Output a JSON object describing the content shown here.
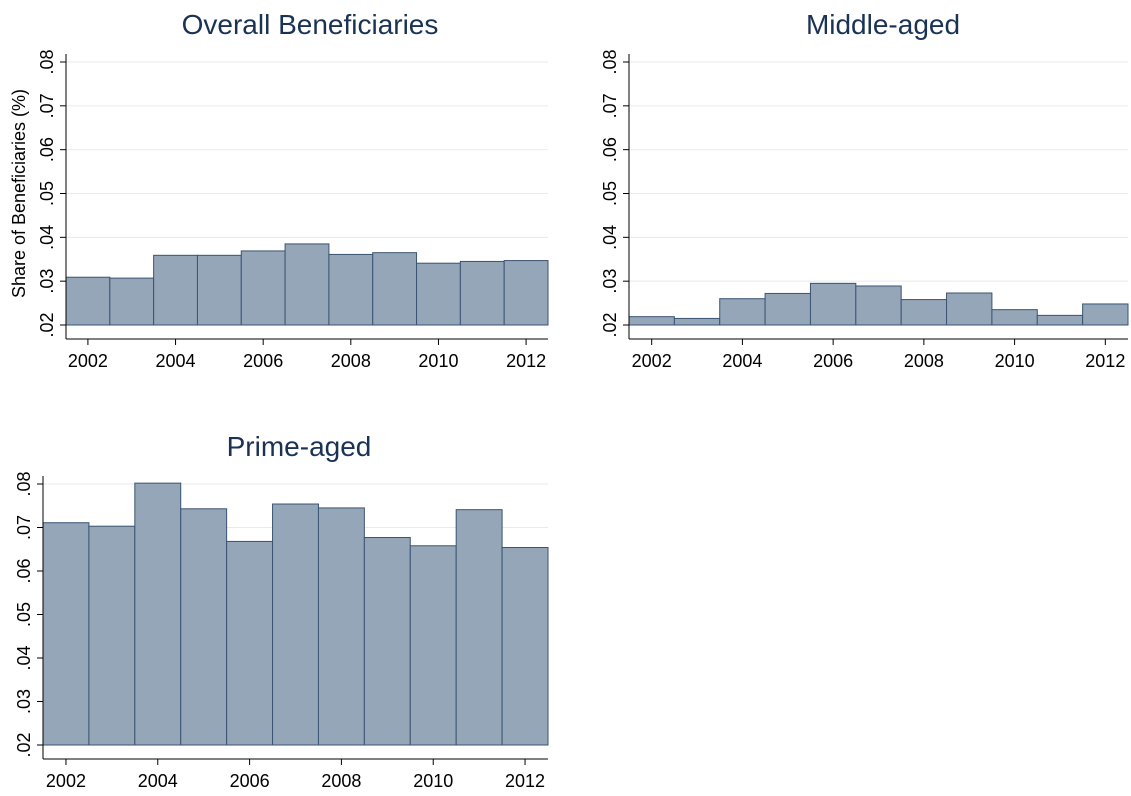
{
  "figure": {
    "background": "#ffffff"
  },
  "style": {
    "bar_fill": "#94a6b8",
    "bar_stroke": "#3a5472",
    "grid_color": "#e6eaee",
    "axis_color": "#000000",
    "title_color": "#1a3254"
  },
  "chart_data": [
    {
      "type": "bar",
      "title": "Overall Beneficiaries",
      "ylabel": "Share of Beneficiaries (%)",
      "xlabel": "",
      "x": [
        2002,
        2003,
        2004,
        2005,
        2006,
        2007,
        2008,
        2009,
        2010,
        2011,
        2012
      ],
      "values": [
        0.0309,
        0.0307,
        0.0359,
        0.0359,
        0.0369,
        0.0385,
        0.0361,
        0.0365,
        0.0341,
        0.0345,
        0.0347
      ],
      "ylim": [
        0.02,
        0.08
      ],
      "yticks": [
        ".02",
        ".03",
        ".04",
        ".05",
        ".06",
        ".07",
        ".08"
      ],
      "xticks": [
        "2002",
        "2004",
        "2006",
        "2008",
        "2010",
        "2012"
      ],
      "grid": true
    },
    {
      "type": "bar",
      "title": "Middle-aged",
      "ylabel": "",
      "xlabel": "",
      "x": [
        2002,
        2003,
        2004,
        2005,
        2006,
        2007,
        2008,
        2009,
        2010,
        2011,
        2012
      ],
      "values": [
        0.0219,
        0.0215,
        0.026,
        0.0272,
        0.0295,
        0.0289,
        0.0258,
        0.0273,
        0.0235,
        0.0222,
        0.0248
      ],
      "ylim": [
        0.02,
        0.08
      ],
      "yticks": [
        ".02",
        ".03",
        ".04",
        ".05",
        ".06",
        ".07",
        ".08"
      ],
      "xticks": [
        "2002",
        "2004",
        "2006",
        "2008",
        "2010",
        "2012"
      ],
      "grid": true
    },
    {
      "type": "bar",
      "title": "Prime-aged",
      "ylabel": "",
      "xlabel": "",
      "x": [
        2002,
        2003,
        2004,
        2005,
        2006,
        2007,
        2008,
        2009,
        2010,
        2011,
        2012
      ],
      "values": [
        0.0711,
        0.0703,
        0.0802,
        0.0743,
        0.0668,
        0.0754,
        0.0745,
        0.0677,
        0.0658,
        0.0741,
        0.0654
      ],
      "ylim": [
        0.02,
        0.08
      ],
      "yticks": [
        ".02",
        ".03",
        ".04",
        ".05",
        ".06",
        ".07",
        ".08"
      ],
      "xticks": [
        "2002",
        "2004",
        "2006",
        "2008",
        "2010",
        "2012"
      ],
      "grid": true
    }
  ]
}
